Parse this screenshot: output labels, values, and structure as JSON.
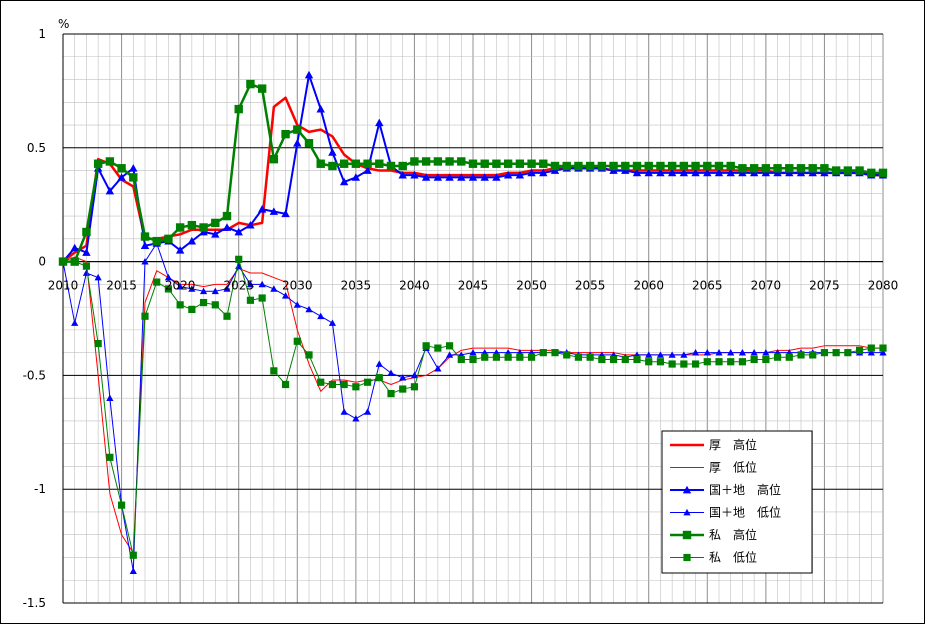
{
  "chart_data": {
    "type": "line",
    "unit_label": "%",
    "x": [
      2010,
      2011,
      2012,
      2013,
      2014,
      2015,
      2016,
      2017,
      2018,
      2019,
      2020,
      2021,
      2022,
      2023,
      2024,
      2025,
      2026,
      2027,
      2028,
      2029,
      2030,
      2031,
      2032,
      2033,
      2034,
      2035,
      2036,
      2037,
      2038,
      2039,
      2040,
      2041,
      2042,
      2043,
      2044,
      2045,
      2046,
      2047,
      2048,
      2049,
      2050,
      2051,
      2052,
      2053,
      2054,
      2055,
      2056,
      2057,
      2058,
      2059,
      2060,
      2061,
      2062,
      2063,
      2064,
      2065,
      2066,
      2067,
      2068,
      2069,
      2070,
      2071,
      2072,
      2073,
      2074,
      2075,
      2076,
      2077,
      2078,
      2079,
      2080
    ],
    "xlim": [
      2010,
      2080
    ],
    "ylim": [
      -1.5,
      1
    ],
    "x_ticks": [
      2010,
      2015,
      2020,
      2025,
      2030,
      2035,
      2040,
      2045,
      2050,
      2055,
      2060,
      2065,
      2070,
      2075,
      2080
    ],
    "y_ticks": [
      1,
      0.5,
      0,
      -0.5,
      -1,
      -1.5
    ],
    "y_tick_labels": [
      "1",
      "0.5",
      "0",
      "-0.5",
      "-1",
      "-1.5"
    ],
    "grid": true,
    "legend_position": "bottom-right",
    "series": [
      {
        "name": "厚　高位",
        "color": "#ff0000",
        "marker": "none",
        "width": 2.5,
        "values": [
          0,
          0.04,
          0.07,
          0.45,
          0.43,
          0.36,
          0.33,
          0.1,
          0.1,
          0.11,
          0.12,
          0.14,
          0.14,
          0.14,
          0.14,
          0.17,
          0.16,
          0.17,
          0.68,
          0.72,
          0.6,
          0.57,
          0.58,
          0.55,
          0.47,
          0.43,
          0.41,
          0.4,
          0.4,
          0.39,
          0.39,
          0.38,
          0.38,
          0.38,
          0.38,
          0.38,
          0.38,
          0.38,
          0.39,
          0.39,
          0.4,
          0.4,
          0.41,
          0.41,
          0.41,
          0.41,
          0.41,
          0.4,
          0.4,
          0.4,
          0.4,
          0.4,
          0.4,
          0.4,
          0.4,
          0.4,
          0.4,
          0.4,
          0.4,
          0.4,
          0.4,
          0.39,
          0.39,
          0.39,
          0.39,
          0.39,
          0.39,
          0.39,
          0.39,
          0.38,
          0.38
        ]
      },
      {
        "name": "厚　低位",
        "color": "#ff0000",
        "marker": "none",
        "width": 1,
        "values": [
          0,
          0.02,
          0,
          -0.5,
          -1.02,
          -1.2,
          -1.28,
          -0.18,
          -0.04,
          -0.07,
          -0.1,
          -0.1,
          -0.11,
          -0.1,
          -0.1,
          -0.03,
          -0.05,
          -0.05,
          -0.07,
          -0.09,
          -0.3,
          -0.45,
          -0.57,
          -0.52,
          -0.52,
          -0.53,
          -0.52,
          -0.52,
          -0.54,
          -0.52,
          -0.51,
          -0.5,
          -0.47,
          -0.42,
          -0.39,
          -0.38,
          -0.38,
          -0.38,
          -0.38,
          -0.39,
          -0.39,
          -0.39,
          -0.39,
          -0.4,
          -0.4,
          -0.4,
          -0.4,
          -0.4,
          -0.41,
          -0.41,
          -0.41,
          -0.41,
          -0.41,
          -0.41,
          -0.41,
          -0.41,
          -0.4,
          -0.4,
          -0.4,
          -0.4,
          -0.4,
          -0.39,
          -0.39,
          -0.38,
          -0.38,
          -0.37,
          -0.37,
          -0.37,
          -0.37,
          -0.38,
          -0.38
        ]
      },
      {
        "name": "国＋地　高位",
        "color": "#0000ff",
        "marker": "triangle",
        "width": 2,
        "values": [
          0,
          0.06,
          0.04,
          0.41,
          0.31,
          0.37,
          0.41,
          0.07,
          0.08,
          0.09,
          0.05,
          0.09,
          0.13,
          0.12,
          0.15,
          0.13,
          0.16,
          0.23,
          0.22,
          0.21,
          0.52,
          0.82,
          0.67,
          0.48,
          0.35,
          0.37,
          0.4,
          0.61,
          0.42,
          0.38,
          0.38,
          0.37,
          0.37,
          0.37,
          0.37,
          0.37,
          0.37,
          0.37,
          0.38,
          0.38,
          0.39,
          0.39,
          0.4,
          0.41,
          0.41,
          0.41,
          0.41,
          0.4,
          0.4,
          0.39,
          0.39,
          0.39,
          0.39,
          0.39,
          0.39,
          0.39,
          0.39,
          0.39,
          0.39,
          0.39,
          0.39,
          0.39,
          0.39,
          0.39,
          0.39,
          0.39,
          0.39,
          0.39,
          0.39,
          0.38,
          0.38
        ]
      },
      {
        "name": "国＋地　低位",
        "color": "#0000ff",
        "marker": "triangle",
        "width": 1,
        "values": [
          0,
          -0.27,
          -0.05,
          -0.07,
          -0.6,
          -1.07,
          -1.36,
          0,
          0.08,
          -0.07,
          -0.11,
          -0.12,
          -0.13,
          -0.13,
          -0.12,
          -0.02,
          -0.1,
          -0.1,
          -0.12,
          -0.15,
          -0.19,
          -0.21,
          -0.24,
          -0.27,
          -0.66,
          -0.69,
          -0.66,
          -0.45,
          -0.49,
          -0.51,
          -0.5,
          -0.38,
          -0.47,
          -0.41,
          -0.41,
          -0.4,
          -0.4,
          -0.4,
          -0.4,
          -0.4,
          -0.4,
          -0.4,
          -0.4,
          -0.4,
          -0.41,
          -0.41,
          -0.41,
          -0.41,
          -0.42,
          -0.41,
          -0.41,
          -0.41,
          -0.41,
          -0.41,
          -0.4,
          -0.4,
          -0.4,
          -0.4,
          -0.4,
          -0.4,
          -0.4,
          -0.4,
          -0.4,
          -0.4,
          -0.4,
          -0.4,
          -0.4,
          -0.4,
          -0.4,
          -0.4,
          -0.4
        ]
      },
      {
        "name": "私　高位",
        "color": "#008000",
        "marker": "square",
        "width": 2.5,
        "values": [
          0,
          0,
          0.13,
          0.43,
          0.44,
          0.41,
          0.37,
          0.11,
          0.09,
          0.1,
          0.15,
          0.16,
          0.15,
          0.17,
          0.2,
          0.67,
          0.78,
          0.76,
          0.45,
          0.56,
          0.58,
          0.52,
          0.43,
          0.42,
          0.43,
          0.43,
          0.43,
          0.43,
          0.42,
          0.42,
          0.44,
          0.44,
          0.44,
          0.44,
          0.44,
          0.43,
          0.43,
          0.43,
          0.43,
          0.43,
          0.43,
          0.43,
          0.42,
          0.42,
          0.42,
          0.42,
          0.42,
          0.42,
          0.42,
          0.42,
          0.42,
          0.42,
          0.42,
          0.42,
          0.42,
          0.42,
          0.42,
          0.42,
          0.41,
          0.41,
          0.41,
          0.41,
          0.41,
          0.41,
          0.41,
          0.41,
          0.4,
          0.4,
          0.4,
          0.39,
          0.39
        ]
      },
      {
        "name": "私　低位",
        "color": "#008000",
        "marker": "square",
        "width": 1,
        "values": [
          0,
          0,
          -0.02,
          -0.36,
          -0.86,
          -1.07,
          -1.29,
          -0.24,
          -0.09,
          -0.12,
          -0.19,
          -0.21,
          -0.18,
          -0.19,
          -0.24,
          0.01,
          -0.17,
          -0.16,
          -0.48,
          -0.54,
          -0.35,
          -0.41,
          -0.53,
          -0.54,
          -0.54,
          -0.55,
          -0.53,
          -0.51,
          -0.58,
          -0.56,
          -0.55,
          -0.37,
          -0.38,
          -0.37,
          -0.43,
          -0.43,
          -0.42,
          -0.42,
          -0.42,
          -0.42,
          -0.42,
          -0.4,
          -0.4,
          -0.41,
          -0.42,
          -0.42,
          -0.43,
          -0.43,
          -0.43,
          -0.43,
          -0.44,
          -0.44,
          -0.45,
          -0.45,
          -0.45,
          -0.44,
          -0.44,
          -0.44,
          -0.44,
          -0.43,
          -0.43,
          -0.42,
          -0.42,
          -0.41,
          -0.41,
          -0.4,
          -0.4,
          -0.4,
          -0.39,
          -0.38,
          -0.38
        ]
      }
    ]
  }
}
